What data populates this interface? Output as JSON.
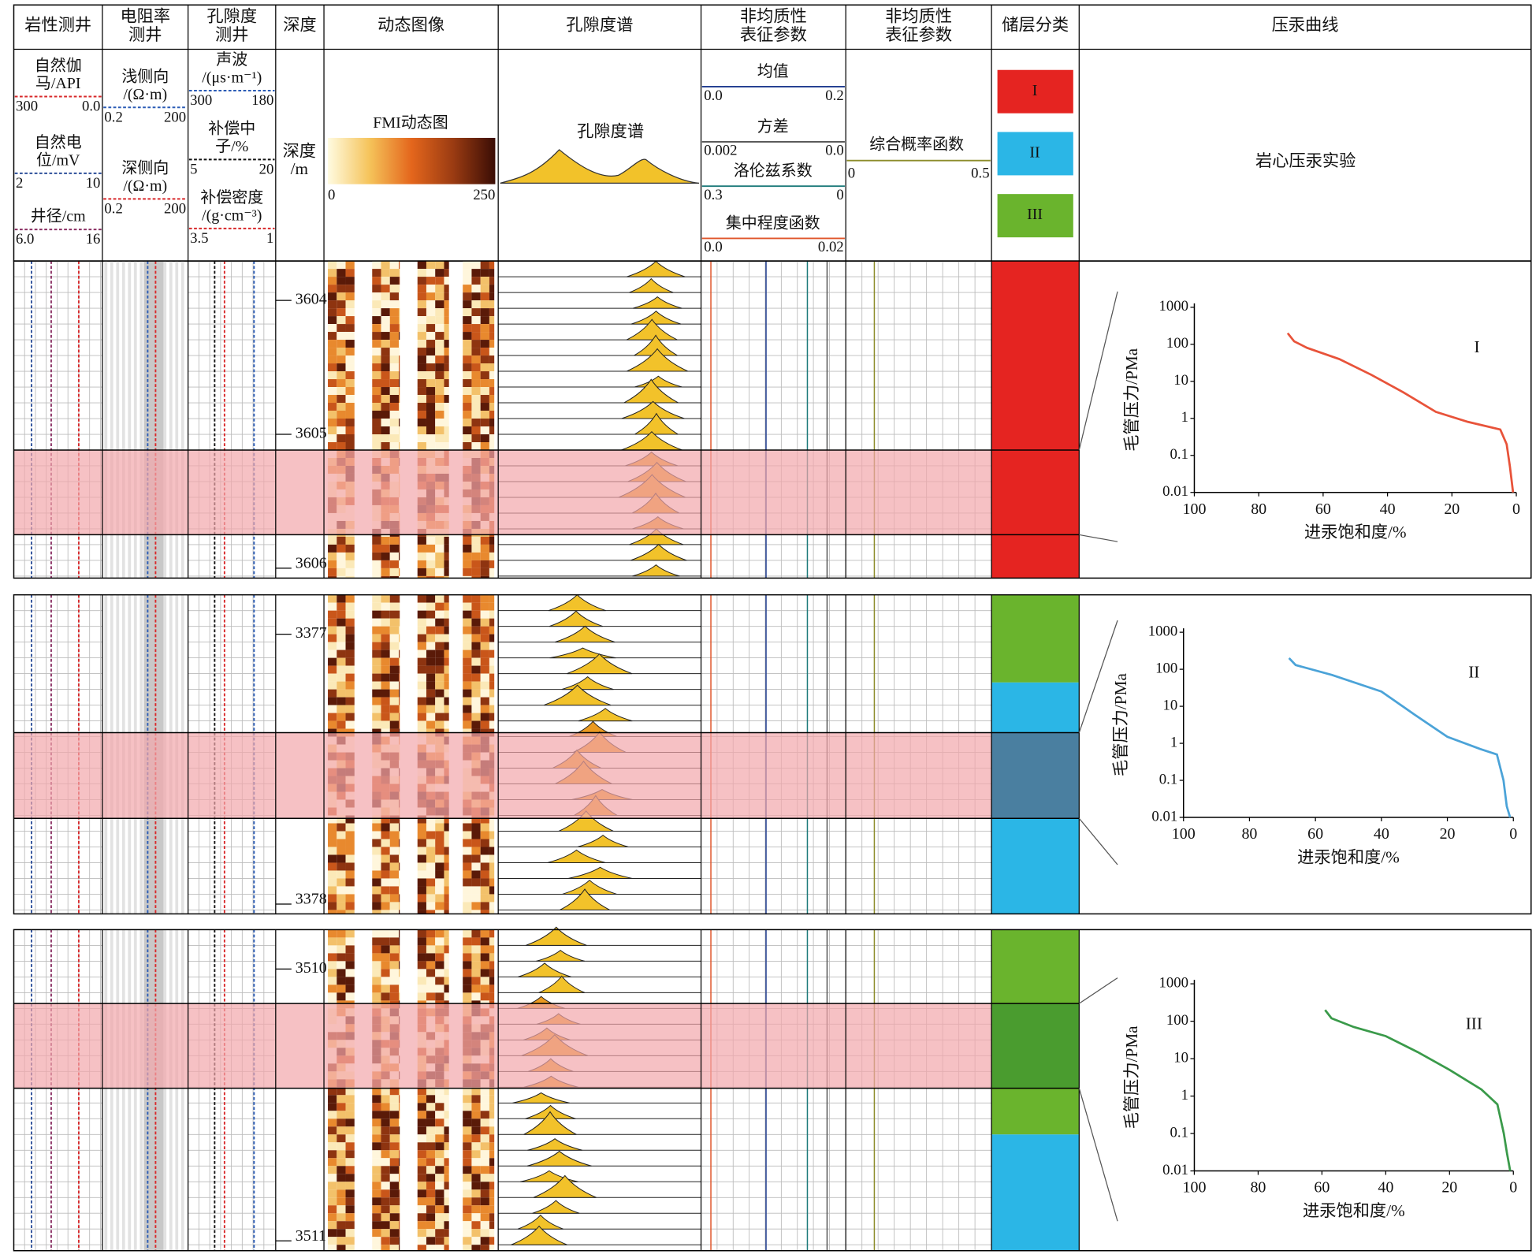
{
  "header": {
    "columns": [
      [
        "岩性测井"
      ],
      [
        "电阻率",
        "测井"
      ],
      [
        "孔隙度",
        "测井"
      ],
      [
        "深度"
      ],
      [
        "动态图像"
      ],
      [
        "孔隙度谱"
      ],
      [
        "非均质性",
        "表征参数"
      ],
      [
        "非均质性",
        "表征参数"
      ],
      [
        "储层分类"
      ],
      [
        "压汞曲线"
      ]
    ]
  },
  "scales": {
    "lithology": [
      {
        "name": [
          "自然伽",
          "马/API"
        ],
        "min": "300",
        "max": "0.0",
        "color": "#d8282a"
      },
      {
        "name": [
          "自然电",
          "位/mV"
        ],
        "min": "2",
        "max": "10",
        "color": "#2d4f9a"
      },
      {
        "name": [
          "井径/cm"
        ],
        "min": "6.0",
        "max": "16",
        "color": "#8a2f63"
      }
    ],
    "resistivity": [
      {
        "name": [
          "浅侧向",
          "/(Ω·m)"
        ],
        "min": "0.2",
        "max": "200",
        "color": "#2a5bb5"
      },
      {
        "name": [
          "深侧向",
          "/(Ω·m)"
        ],
        "min": "0.2",
        "max": "200",
        "color": "#d8282a"
      }
    ],
    "porosity": [
      {
        "name": [
          "声波",
          "/(μs·m⁻¹)"
        ],
        "min": "300",
        "max": "180",
        "color": "#2a5bb5"
      },
      {
        "name": [
          "补偿中",
          "子/%"
        ],
        "min": "5",
        "max": "20",
        "color": "#111111"
      },
      {
        "name": [
          "补偿密度",
          "/(g·cm⁻³)"
        ],
        "min": "3.5",
        "max": "1",
        "color": "#d8282a"
      }
    ],
    "depth": [
      "深度",
      "/m"
    ],
    "fmi": {
      "name": "FMI动态图",
      "min": "0",
      "max": "250"
    },
    "spectrum": "孔隙度谱",
    "heterogeneity": [
      {
        "name": "均值",
        "min": "0.0",
        "max": "0.2",
        "color": "#1f3c8f"
      },
      {
        "name": "方差",
        "min": "0.002",
        "max": "0.0",
        "color": "#555555"
      },
      {
        "name": "洛伦兹系数",
        "min": "0.3",
        "max": "0",
        "color": "#1d7a7a"
      },
      {
        "name": "集中程度函数",
        "min": "0.0",
        "max": "0.02",
        "color": "#e0562b"
      }
    ],
    "probability": {
      "name": "综合概率函数",
      "min": "0",
      "max": "0.5",
      "color": "#8c8c2a"
    },
    "classes": [
      "I",
      "II",
      "III"
    ],
    "experiment": "岩心压汞实验"
  },
  "depth_labels": [
    [
      "3604",
      "3605",
      "3606"
    ],
    [
      "3377",
      "3378"
    ],
    [
      "3510",
      "3511"
    ]
  ],
  "chart_data": [
    {
      "type": "line",
      "annotation": "I",
      "xlabel": "进汞饱和度/%",
      "ylabel": "毛管压力/PMa",
      "log_y": true,
      "x": [
        71,
        69,
        65,
        55,
        45,
        35,
        25,
        15,
        5,
        3,
        2,
        1
      ],
      "series": [
        {
          "color": "#e8533a",
          "values": [
            200,
            120,
            80,
            40,
            15,
            5,
            1.5,
            0.8,
            0.5,
            0.2,
            0.05,
            0.01
          ]
        }
      ],
      "xlim": [
        100,
        0
      ],
      "ylim": [
        0.01,
        1000
      ],
      "xticks": [
        100,
        80,
        60,
        40,
        20,
        0
      ],
      "yticks": [
        0.01,
        0.1,
        1,
        10,
        100,
        1000
      ]
    },
    {
      "type": "line",
      "annotation": "II",
      "xlabel": "进汞饱和度/%",
      "ylabel": "毛管压力/PMa",
      "log_y": true,
      "x": [
        68,
        66,
        55,
        40,
        30,
        20,
        10,
        5,
        3,
        2,
        1
      ],
      "series": [
        {
          "color": "#4ba3d8",
          "values": [
            200,
            130,
            70,
            25,
            6,
            1.5,
            0.7,
            0.5,
            0.1,
            0.02,
            0.01
          ]
        }
      ],
      "xlim": [
        100,
        0
      ],
      "ylim": [
        0.01,
        1000
      ],
      "xticks": [
        100,
        80,
        60,
        40,
        20,
        0
      ],
      "yticks": [
        0.01,
        0.1,
        1,
        10,
        100,
        1000
      ]
    },
    {
      "type": "line",
      "annotation": "III",
      "xlabel": "进汞饱和度/%",
      "ylabel": "毛管压力/PMa",
      "log_y": true,
      "x": [
        59,
        57,
        50,
        40,
        30,
        20,
        10,
        5,
        3,
        2,
        1
      ],
      "series": [
        {
          "color": "#3a9a4a",
          "values": [
            200,
            120,
            70,
            40,
            15,
            5,
            1.5,
            0.6,
            0.1,
            0.03,
            0.01
          ]
        }
      ],
      "xlim": [
        100,
        0
      ],
      "ylim": [
        0.01,
        1000
      ],
      "xticks": [
        100,
        80,
        60,
        40,
        20,
        0
      ],
      "yticks": [
        0.01,
        0.1,
        1,
        10,
        100,
        1000
      ]
    }
  ]
}
